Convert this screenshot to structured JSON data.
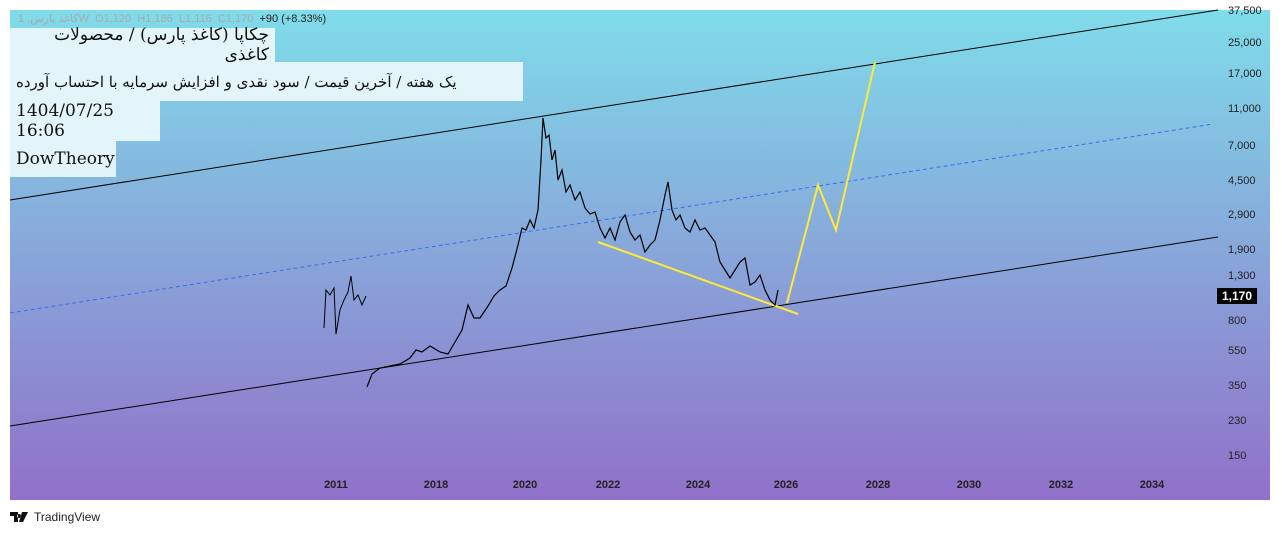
{
  "legend": {
    "symbol": "کاغذ پارس, 1W",
    "open": "O1,120",
    "high": "H1,186",
    "low": "L1,116",
    "close": "C1,170",
    "change": "+90 (+8.33%)"
  },
  "notes": {
    "title": "چکاپا (کاغذ پارس) / محصولات کاغذی",
    "subtitle": "یک هفته / آخرین قیمت / سود نقدی و افزایش سرمایه با احتساب آورده",
    "datetime": "1404/07/25 16:06",
    "author": "DowTheory"
  },
  "y_axis": [
    "37,500",
    "25,000",
    "17,000",
    "11,000",
    "7,000",
    "4,500",
    "2,900",
    "1,900",
    "1,300",
    "800",
    "550",
    "350",
    "230",
    "150"
  ],
  "current_price": "1,170",
  "x_axis": [
    "2011",
    "2018",
    "2020",
    "2022",
    "2024",
    "2026",
    "2028",
    "2030",
    "2032",
    "2034"
  ],
  "brand": "TradingView",
  "colors": {
    "projection": "#ffe93b",
    "midline": "#3d6cf0",
    "channel": "#000000"
  }
}
